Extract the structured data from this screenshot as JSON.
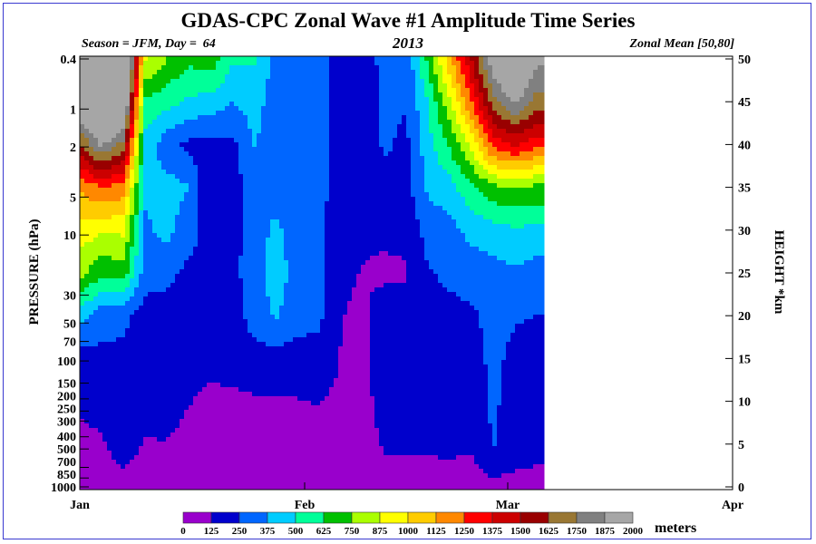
{
  "chart_data": {
    "type": "heatmap",
    "title": "GDAS-CPC Zonal Wave #1 Amplitude Time Series",
    "subtitle_left": "Season = JFM, Day =  64",
    "subtitle_center": "2013",
    "subtitle_right": "Zonal Mean [50,80]",
    "ylabel_left": "PRESSURE (hPa)",
    "ylabel_right": "HEIGHT *km",
    "colorbar_unit": "meters",
    "x_ticks": [
      "Jan",
      "Feb",
      "Mar",
      "Apr"
    ],
    "x_tick_days": [
      1,
      32,
      60,
      91
    ],
    "xlim_days": [
      1,
      91
    ],
    "pressure_ticks": [
      "0.4",
      "1",
      "2",
      "5",
      "10",
      "30",
      "50",
      "70",
      "100",
      "150",
      "200",
      "250",
      "300",
      "400",
      "500",
      "700",
      "850",
      "1000"
    ],
    "height_ticks": [
      "0",
      "5",
      "10",
      "15",
      "20",
      "25",
      "30",
      "35",
      "40",
      "45",
      "50"
    ],
    "ylim_km": [
      0,
      50
    ],
    "levels": [
      "0",
      "125",
      "250",
      "375",
      "500",
      "625",
      "750",
      "875",
      "1000",
      "1125",
      "1250",
      "1375",
      "1500",
      "1625",
      "1750",
      "1875",
      "2000"
    ],
    "colors": [
      "#9900cc",
      "#0000cc",
      "#0066ff",
      "#00ccff",
      "#00ff99",
      "#00c000",
      "#aaff00",
      "#ffff00",
      "#ffcc00",
      "#ff8800",
      "#ff0000",
      "#cc0000",
      "#990000",
      "#997733",
      "#808080",
      "#a6a6a6"
    ],
    "days": [
      1,
      4,
      7,
      10,
      13,
      16,
      19,
      22,
      25,
      28,
      31,
      34,
      37,
      40,
      43,
      46,
      49,
      52,
      55,
      58,
      61,
      64
    ],
    "heights_km": [
      0,
      5,
      10,
      15,
      20,
      25,
      30,
      35,
      40,
      45,
      50
    ],
    "amplitude_m": [
      [
        50,
        80,
        150,
        200,
        420,
        800,
        950,
        1150,
        1600,
        2100,
        2300
      ],
      [
        60,
        110,
        180,
        220,
        300,
        650,
        900,
        1250,
        1900,
        2400,
        2600
      ],
      [
        80,
        180,
        200,
        220,
        280,
        700,
        900,
        1200,
        1700,
        2200,
        2400
      ],
      [
        60,
        120,
        150,
        180,
        200,
        300,
        350,
        400,
        450,
        600,
        900
      ],
      [
        60,
        120,
        180,
        200,
        200,
        280,
        420,
        420,
        300,
        550,
        750
      ],
      [
        70,
        90,
        130,
        190,
        200,
        220,
        300,
        380,
        220,
        480,
        650
      ],
      [
        50,
        80,
        100,
        160,
        200,
        220,
        200,
        110,
        200,
        450,
        700
      ],
      [
        50,
        70,
        100,
        170,
        190,
        200,
        200,
        190,
        220,
        380,
        520
      ],
      [
        50,
        70,
        110,
        200,
        300,
        330,
        320,
        310,
        380,
        420,
        520
      ],
      [
        50,
        80,
        110,
        200,
        390,
        430,
        400,
        330,
        320,
        320,
        320
      ],
      [
        50,
        80,
        120,
        200,
        300,
        330,
        320,
        300,
        300,
        300,
        290
      ],
      [
        50,
        90,
        130,
        200,
        280,
        290,
        290,
        290,
        290,
        290,
        290
      ],
      [
        50,
        80,
        100,
        120,
        130,
        150,
        170,
        180,
        190,
        200,
        210
      ],
      [
        40,
        60,
        80,
        90,
        100,
        120,
        150,
        160,
        170,
        180,
        180
      ],
      [
        80,
        140,
        180,
        200,
        190,
        100,
        150,
        200,
        270,
        280,
        290
      ],
      [
        70,
        140,
        200,
        220,
        180,
        110,
        160,
        200,
        220,
        260,
        270
      ],
      [
        80,
        140,
        180,
        200,
        220,
        240,
        300,
        400,
        450,
        500,
        650
      ],
      [
        80,
        150,
        200,
        220,
        220,
        270,
        330,
        450,
        650,
        850,
        1100
      ],
      [
        70,
        140,
        180,
        200,
        230,
        300,
        420,
        600,
        900,
        1250,
        1500
      ],
      [
        90,
        260,
        270,
        280,
        290,
        330,
        450,
        720,
        1300,
        1700,
        2000
      ],
      [
        90,
        180,
        200,
        220,
        260,
        360,
        480,
        750,
        1400,
        1900,
        2200
      ],
      [
        100,
        150,
        170,
        200,
        250,
        320,
        470,
        720,
        1300,
        1700,
        1900
      ]
    ],
    "grid": false,
    "legend": "bottom colorbar"
  }
}
